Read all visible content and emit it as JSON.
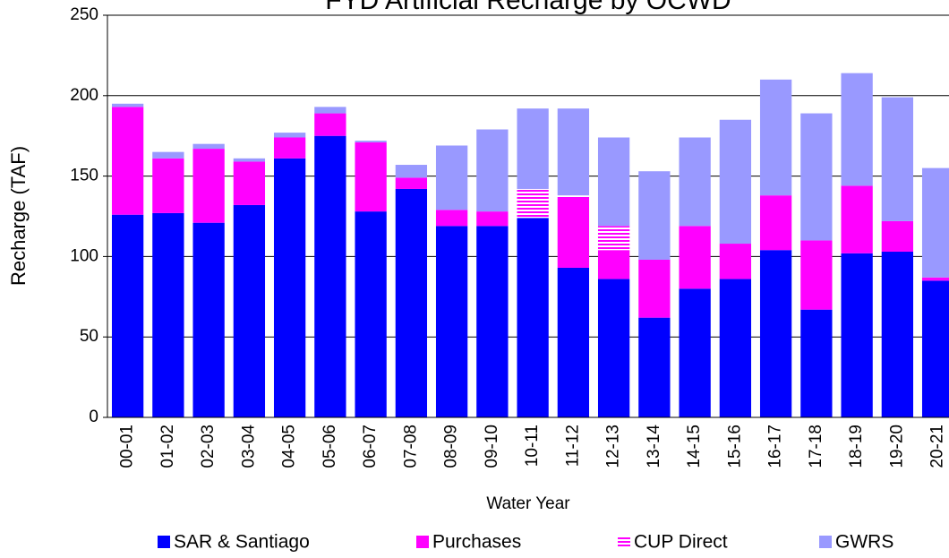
{
  "chart_data": {
    "type": "stacked-bar",
    "title": "FYD Artificial Recharge by OCWD",
    "x_label": "Water Year",
    "y_label": "Recharge (TAF)",
    "categories": [
      "00-01",
      "01-02",
      "02-03",
      "03-04",
      "04-05",
      "05-06",
      "06-07",
      "07-08",
      "08-09",
      "09-10",
      "10-11",
      "11-12",
      "12-13",
      "13-14",
      "14-15",
      "15-16",
      "16-17",
      "17-18",
      "18-19",
      "19-20",
      "20-21"
    ],
    "series": [
      {
        "name": "SAR & Santiago",
        "color": "#0000ff",
        "values": [
          126,
          127,
          121,
          132,
          161,
          175,
          128,
          142,
          119,
          119,
          124,
          93,
          86,
          62,
          80,
          86,
          104,
          67,
          102,
          103,
          85
        ]
      },
      {
        "name": "Purchases",
        "color": "#ff00ff",
        "values": [
          67,
          34,
          46,
          27,
          13,
          14,
          43,
          7,
          10,
          9,
          0,
          44,
          18,
          36,
          39,
          22,
          34,
          43,
          42,
          19,
          2
        ]
      },
      {
        "name": "CUP Direct",
        "color": "#ff00ff",
        "hatch": "horizontal",
        "values": [
          0,
          0,
          0,
          0,
          0,
          0,
          0,
          0,
          0,
          0,
          18,
          1,
          15,
          0,
          0,
          0,
          0,
          0,
          0,
          0,
          0
        ]
      },
      {
        "name": "GWRS",
        "color": "#9999ff",
        "values": [
          2,
          4,
          3,
          2,
          3,
          4,
          1,
          8,
          40,
          51,
          50,
          54,
          55,
          55,
          55,
          77,
          72,
          79,
          70,
          77,
          68
        ]
      }
    ],
    "ylim": [
      0,
      250
    ],
    "yticks": [
      0,
      50,
      100,
      150,
      200,
      250
    ],
    "grid": true,
    "legend": "bottom"
  }
}
